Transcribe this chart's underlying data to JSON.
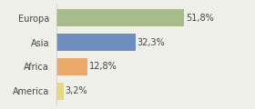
{
  "categories": [
    "Europa",
    "Asia",
    "Africa",
    "America"
  ],
  "values": [
    51.8,
    32.3,
    12.8,
    3.2
  ],
  "labels": [
    "51,8%",
    "32,3%",
    "12,8%",
    "3,2%"
  ],
  "bar_colors": [
    "#a8bb8a",
    "#6e8fbe",
    "#e8a96a",
    "#e8d87a"
  ],
  "background_color": "#f0f0eb",
  "xlim": [
    0,
    68
  ],
  "label_fontsize": 7,
  "category_fontsize": 7,
  "bar_height": 0.72
}
